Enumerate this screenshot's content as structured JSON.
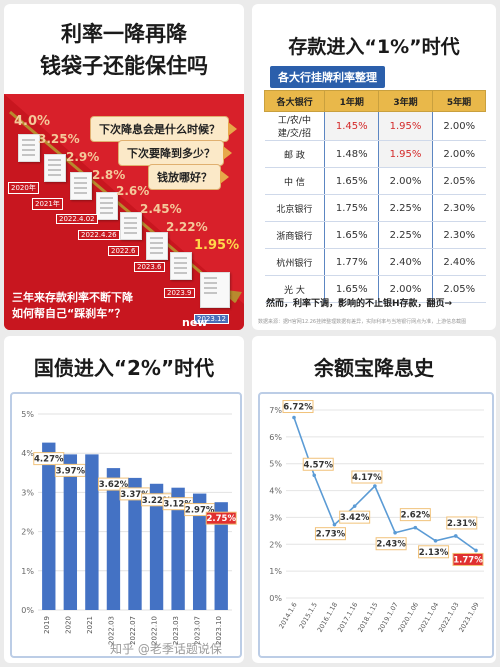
{
  "panel1": {
    "title_line1": "利率一降再降",
    "title_line2": "钱袋子还能保住吗",
    "questions": [
      "下次降息会是什么时候？",
      "下次要降到多少？",
      "钱放哪好？"
    ],
    "rates": [
      "4.0%",
      "3.25%",
      "2.9%",
      "2.8%",
      "2.6%",
      "2.45%",
      "2.22%",
      "1.95%"
    ],
    "dates": [
      "2020年",
      "2021年",
      "2022.4.02",
      "2022.4.26",
      "2022.6",
      "2023.6",
      "2023.9",
      "2023.12"
    ],
    "bottom_text_line1": "三年来存款利率不断下降",
    "bottom_text_line2": "如何帮自己“踩刹车”？",
    "new_label": "new"
  },
  "panel2": {
    "title": "存款进入“1%”时代",
    "subtitle": "各大行挂牌利率整理",
    "headers": [
      "各大银行",
      "1年期",
      "3年期",
      "5年期"
    ],
    "rows": [
      {
        "bank": "工/农/中\n建/交/招",
        "y1": "1.45%",
        "y3": "1.95%",
        "y5": "2.00%",
        "red1": true,
        "red3": true
      },
      {
        "bank": "邮 政",
        "y1": "1.48%",
        "y3": "1.95%",
        "y5": "2.00%",
        "red1": false,
        "red3": true
      },
      {
        "bank": "中 信",
        "y1": "1.65%",
        "y3": "2.00%",
        "y5": "2.05%",
        "red1": false,
        "red3": false
      },
      {
        "bank": "北京银行",
        "y1": "1.75%",
        "y3": "2.25%",
        "y5": "2.30%",
        "red1": false,
        "red3": false
      },
      {
        "bank": "浙商银行",
        "y1": "1.65%",
        "y3": "2.25%",
        "y5": "2.30%",
        "red1": false,
        "red3": false
      },
      {
        "bank": "杭州银行",
        "y1": "1.77%",
        "y3": "2.40%",
        "y5": "2.40%",
        "red1": false,
        "red3": false
      },
      {
        "bank": "光 大",
        "y1": "1.65%",
        "y3": "2.00%",
        "y5": "2.05%",
        "red1": false,
        "red3": false
      }
    ],
    "footer": "然而，利率下调，影响的不止银H存款，翻页→",
    "source": "数据来源：据H官网12.26挂牌整理数据有差异，实际利率与当地银行网点为准，上游信息截图"
  },
  "panel3": {
    "title": "国债进入“2%”时代",
    "chart_data": {
      "type": "bar",
      "categories": [
        "2019",
        "2020",
        "2021",
        "2022.03",
        "2022.07",
        "2022.10",
        "2023.03",
        "2023.07",
        "2023.10"
      ],
      "values": [
        4.27,
        3.97,
        3.97,
        3.62,
        3.37,
        3.22,
        3.12,
        2.97,
        2.75
      ],
      "data_labels": [
        "4.27%",
        "3.97%",
        "",
        "3.62%",
        "3.37%",
        "3.22%",
        "3.12%",
        "2.97%",
        "2.75%"
      ],
      "yticks": [
        "0%",
        "1%",
        "2%",
        "3%",
        "4%",
        "5%"
      ],
      "ylim": [
        0,
        5
      ],
      "grid": true,
      "colors": {
        "bar": "#4472c4",
        "highlight_label": "#e03030"
      }
    }
  },
  "panel4": {
    "title": "余额宝降息史",
    "chart_data": {
      "type": "line",
      "x": [
        "2014.1.6",
        "2015.1.5",
        "2016.1.18",
        "2017.1.16",
        "2018.1.15",
        "2019.1.07",
        "2020.1.06",
        "2021.1.04",
        "2022.1.03",
        "2023.1.09"
      ],
      "y": [
        6.72,
        4.57,
        2.73,
        3.42,
        4.17,
        2.43,
        2.62,
        2.13,
        2.31,
        1.77
      ],
      "data_labels": [
        "6.72%",
        "4.57%",
        "2.73%",
        "3.42%",
        "4.17%",
        "2.43%",
        "2.62%",
        "2.13%",
        "2.31%",
        "1.77%"
      ],
      "yticks": [
        "0%",
        "1%",
        "2%",
        "3%",
        "4%",
        "5%",
        "6%",
        "7%"
      ],
      "ylim": [
        0,
        7
      ],
      "grid": true,
      "colors": {
        "line": "#5b9bd5",
        "highlight_label": "#e03030"
      }
    }
  },
  "watermark": "知乎 @老季话题说保"
}
